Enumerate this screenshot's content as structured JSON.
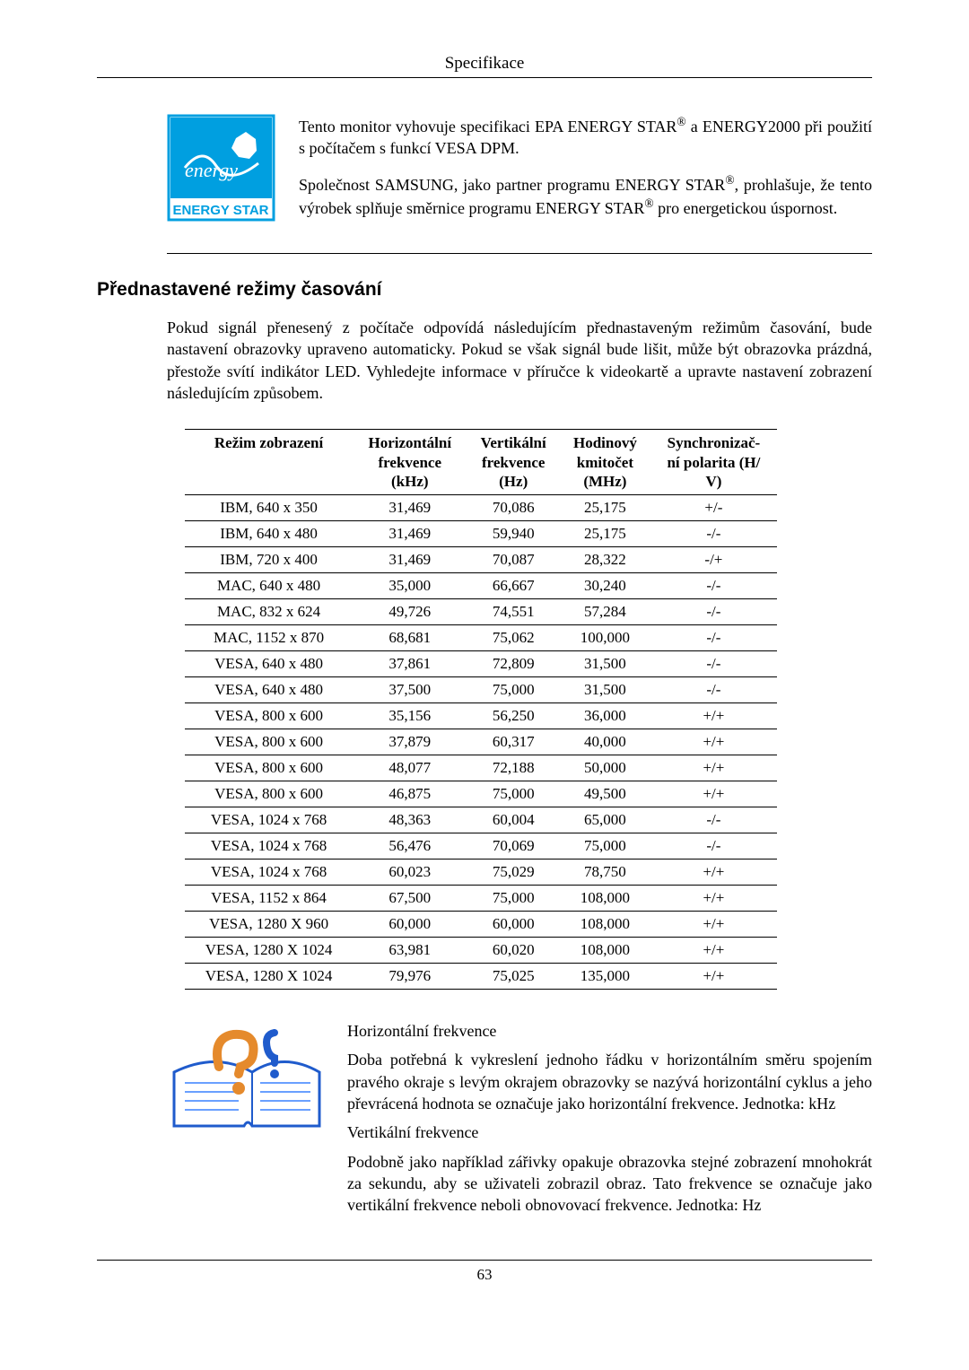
{
  "header": {
    "title": "Specifikace"
  },
  "energy": {
    "p1_a": "Tento monitor vyhovuje specifikaci EPA ENERGY STAR",
    "p1_b": " a ENERGY2000 při použití s počítačem s funkcí VESA DPM.",
    "p2_a": "Společnost SAMSUNG, jako partner programu ENERGY STAR",
    "p2_b": ", prohlašuje, že tento výrobek splňuje směrnice programu ENERGY STAR",
    "p2_c": " pro energetickou úspornost.",
    "reg": "®",
    "logo_text": "ENERGY STAR"
  },
  "section": {
    "heading": "Přednastavené režimy časování",
    "intro": "Pokud signál přenesený z počítače odpovídá následujícím přednastaveným režimům časování, bude nastavení obrazovky upraveno automaticky. Pokud se však signál bude lišit, může být obrazovka prázdná, přestože svítí indikátor LED. Vyhledejte informace v příručce k videokartě a upravte nastavení zobrazení následujícím způsobem."
  },
  "table": {
    "columns": [
      "Režim zobrazení",
      "Horizontální frekvence (kHz)",
      "Vertikální frekvence (Hz)",
      "Hodinový kmitočet (MHz)",
      "Synchronizační polarita (H/V)"
    ],
    "rows": [
      [
        "IBM, 640 x 350",
        "31,469",
        "70,086",
        "25,175",
        "+/-"
      ],
      [
        "IBM, 640 x 480",
        "31,469",
        "59,940",
        "25,175",
        "-/-"
      ],
      [
        "IBM, 720 x 400",
        "31,469",
        "70,087",
        "28,322",
        "-/+"
      ],
      [
        "MAC, 640 x 480",
        "35,000",
        "66,667",
        "30,240",
        "-/-"
      ],
      [
        "MAC, 832 x 624",
        "49,726",
        "74,551",
        "57,284",
        "-/-"
      ],
      [
        "MAC, 1152 x 870",
        "68,681",
        "75,062",
        "100,000",
        "-/-"
      ],
      [
        "VESA, 640 x 480",
        "37,861",
        "72,809",
        "31,500",
        "-/-"
      ],
      [
        "VESA, 640 x 480",
        "37,500",
        "75,000",
        "31,500",
        "-/-"
      ],
      [
        "VESA, 800 x 600",
        "35,156",
        "56,250",
        "36,000",
        "+/+"
      ],
      [
        "VESA, 800 x 600",
        "37,879",
        "60,317",
        "40,000",
        "+/+"
      ],
      [
        "VESA, 800 x 600",
        "48,077",
        "72,188",
        "50,000",
        "+/+"
      ],
      [
        "VESA, 800 x 600",
        "46,875",
        "75,000",
        "49,500",
        "+/+"
      ],
      [
        "VESA, 1024 x 768",
        "48,363",
        "60,004",
        "65,000",
        "-/-"
      ],
      [
        "VESA, 1024 x 768",
        "56,476",
        "70,069",
        "75,000",
        "-/-"
      ],
      [
        "VESA, 1024 x 768",
        "60,023",
        "75,029",
        "78,750",
        "+/+"
      ],
      [
        "VESA, 1152 x 864",
        "67,500",
        "75,000",
        "108,000",
        "+/+"
      ],
      [
        "VESA, 1280 X 960",
        "60,000",
        "60,000",
        "108,000",
        "+/+"
      ],
      [
        "VESA, 1280 X 1024",
        "63,981",
        "60,020",
        "108,000",
        "+/+"
      ],
      [
        "VESA, 1280 X 1024",
        "79,976",
        "75,025",
        "135,000",
        "+/+"
      ]
    ]
  },
  "freq": {
    "h_title": "Horizontální frekvence",
    "h_body": "Doba potřebná k vykreslení jednoho řádku v horizontálním směru spojením pravého okraje s levým okrajem obrazovky se nazývá horizontální cyklus a jeho převrácená hodnota se označuje jako horizontální frekvence. Jednotka: kHz",
    "v_title": "Vertikální frekvence",
    "v_body": "Podobně jako například zářivky opakuje obrazovka stejné zobrazení mnohokrát za sekundu, aby se uživateli zobrazil obraz. Tato frekvence se označuje jako vertikální frekvence neboli obnovovací frekvence. Jednotka: Hz"
  },
  "footer": {
    "page": "63"
  }
}
